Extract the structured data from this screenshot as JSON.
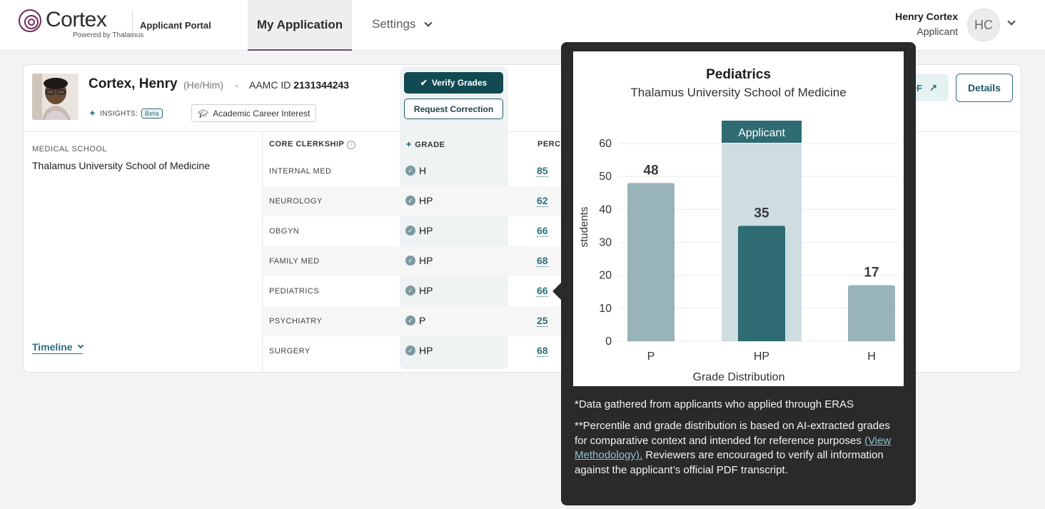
{
  "header": {
    "brand": "Cortex",
    "brand_sub": "Powered by Thalamus",
    "portal": "Applicant Portal",
    "nav_active": "My Application",
    "nav_settings": "Settings",
    "user_name": "Henry Cortex",
    "user_role": "Applicant",
    "user_initials": "HC"
  },
  "applicant": {
    "name": "Cortex, Henry",
    "pronouns": "(He/Him)",
    "aamc_label": "AAMC ID",
    "aamc_id": "2131344243",
    "insights_label": "INSIGHTS:",
    "beta": "Beta",
    "interest_chip": "Academic Career Interest",
    "pdf_label": "PDF",
    "details_label": "Details"
  },
  "school": {
    "label": "MEDICAL SCHOOL",
    "name": "Thalamus University School of Medicine",
    "timeline": "Timeline"
  },
  "grades": {
    "verify_label": "Verify Grades",
    "correction_label": "Request Correction",
    "col_clerkship": "CORE CLERKSHIP",
    "col_grade": "GRADE",
    "col_percentile": "PERCENT",
    "rows": [
      {
        "clerkship": "INTERNAL MED",
        "grade": "H",
        "percentile": "85"
      },
      {
        "clerkship": "NEUROLOGY",
        "grade": "HP",
        "percentile": "62"
      },
      {
        "clerkship": "OBGYN",
        "grade": "HP",
        "percentile": "66"
      },
      {
        "clerkship": "FAMILY MED",
        "grade": "HP",
        "percentile": "68"
      },
      {
        "clerkship": "PEDIATRICS",
        "grade": "HP",
        "percentile": "66"
      },
      {
        "clerkship": "PSYCHIATRY",
        "grade": "P",
        "percentile": "25"
      },
      {
        "clerkship": "SURGERY",
        "grade": "HP",
        "percentile": "68"
      }
    ]
  },
  "popover": {
    "note1": "*Data gathered from applicants who applied through ERAS",
    "note2_a": "**Percentile and grade distribution is based on AI-extracted grades for comparative context and intended for reference purposes ",
    "note2_link": "(View Methodology).",
    "note2_b": " Reviewers are encouraged to verify all information against the applicant’s official PDF transcript."
  },
  "chart_data": {
    "type": "bar",
    "title": "Pediatrics",
    "subtitle": "Thalamus University School of Medicine",
    "xlabel": "Grade Distribution",
    "ylabel": "students",
    "categories": [
      "P",
      "HP",
      "H"
    ],
    "values": [
      48,
      35,
      17
    ],
    "ylim": [
      0,
      60
    ],
    "yticks": [
      0,
      10,
      20,
      30,
      40,
      50,
      60
    ],
    "highlight_category": "HP",
    "highlight_label": "Applicant",
    "grid": true,
    "colors": {
      "bar": "#98b4b8",
      "highlight_bar": "#2e6b72",
      "highlight_band": "#cddde0",
      "highlight_header": "#2e6b72"
    }
  }
}
